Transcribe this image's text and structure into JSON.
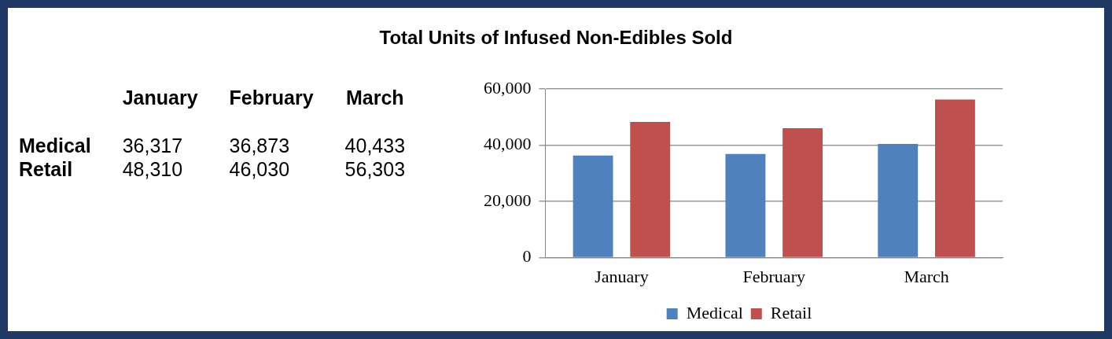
{
  "chart_data": [
    {
      "type": "other",
      "title": "Total Units of Infused Non-Edibles Sold",
      "categories": [
        "January",
        "February",
        "March"
      ],
      "series": [
        {
          "name": "Medical",
          "values": [
            36317,
            36873,
            40433
          ],
          "value_labels": [
            "36,317",
            "36,873",
            "40,433"
          ]
        },
        {
          "name": "Retail",
          "values": [
            48310,
            46030,
            56303
          ],
          "value_labels": [
            "48,310",
            "46,030",
            "56,303"
          ]
        }
      ]
    },
    {
      "type": "bar",
      "categories": [
        "January",
        "February",
        "March"
      ],
      "series": [
        {
          "name": "Medical",
          "color": "#4f81bd",
          "values": [
            36317,
            36873,
            40433
          ]
        },
        {
          "name": "Retail",
          "color": "#c0504d",
          "values": [
            48310,
            46030,
            56303
          ]
        }
      ],
      "ylim": [
        0,
        60000
      ],
      "yticks": [
        {
          "value": 0,
          "label": "0"
        },
        {
          "value": 20000,
          "label": "20,000"
        },
        {
          "value": 40000,
          "label": "40,000"
        },
        {
          "value": 60000,
          "label": "60,000"
        }
      ],
      "grid": "y",
      "legend": "bottom"
    }
  ]
}
